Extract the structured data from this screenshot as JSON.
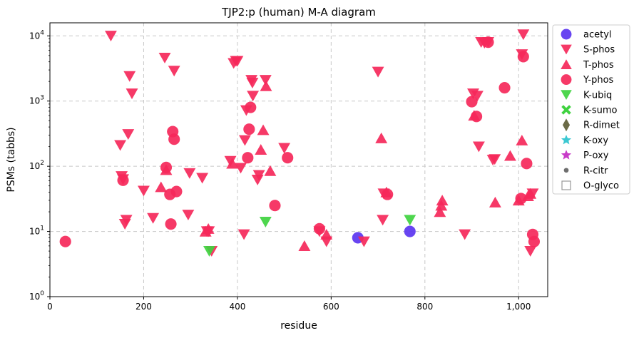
{
  "chart_data": {
    "type": "scatter",
    "title": "TJP2:p (human) M-A diagram",
    "xlabel": "residue",
    "ylabel": "PSMs (tabbs)",
    "xlim": [
      0,
      1062
    ],
    "ylim_log10": [
      0,
      4.2
    ],
    "y_scale": "log",
    "grid": true,
    "legend_placement": "outside-right",
    "x_ticks": [
      {
        "value": 0,
        "label": "0"
      },
      {
        "value": 200,
        "label": "200"
      },
      {
        "value": 400,
        "label": "400"
      },
      {
        "value": 600,
        "label": "600"
      },
      {
        "value": 800,
        "label": "800"
      },
      {
        "value": 1000,
        "label": "1,000"
      }
    ],
    "y_ticks": [
      {
        "value": 1,
        "base": "10",
        "exp": "0"
      },
      {
        "value": 10,
        "base": "10",
        "exp": "1"
      },
      {
        "value": 100,
        "base": "10",
        "exp": "2"
      },
      {
        "value": 1000,
        "base": "10",
        "exp": "3"
      },
      {
        "value": 10000,
        "base": "10",
        "exp": "4"
      }
    ],
    "series": [
      {
        "name": "acetyl",
        "marker": "circle",
        "color": "#5b35f0",
        "points": [
          [
            657,
            8
          ],
          [
            768,
            10
          ]
        ]
      },
      {
        "name": "S-phos",
        "marker": "triangle-down",
        "color": "#f5285a",
        "points": [
          [
            130,
            10000
          ],
          [
            150,
            210
          ],
          [
            153,
            70
          ],
          [
            156,
            63
          ],
          [
            160,
            13
          ],
          [
            163,
            15
          ],
          [
            167,
            310
          ],
          [
            170,
            2400
          ],
          [
            175,
            1300
          ],
          [
            200,
            42
          ],
          [
            220,
            16
          ],
          [
            245,
            4600
          ],
          [
            265,
            2900
          ],
          [
            295,
            18
          ],
          [
            298,
            78
          ],
          [
            325,
            66
          ],
          [
            335,
            10
          ],
          [
            339,
            10
          ],
          [
            345,
            5
          ],
          [
            385,
            120
          ],
          [
            392,
            3800
          ],
          [
            397,
            4100
          ],
          [
            400,
            4100
          ],
          [
            407,
            94
          ],
          [
            414,
            9
          ],
          [
            416,
            250
          ],
          [
            419,
            720
          ],
          [
            430,
            2100
          ],
          [
            432,
            1900
          ],
          [
            433,
            1200
          ],
          [
            443,
            62
          ],
          [
            446,
            73
          ],
          [
            460,
            2100
          ],
          [
            500,
            190
          ],
          [
            575,
            10
          ],
          [
            590,
            7
          ],
          [
            670,
            7
          ],
          [
            700,
            2800
          ],
          [
            710,
            15
          ],
          [
            712,
            38
          ],
          [
            885,
            9
          ],
          [
            903,
            1300
          ],
          [
            912,
            1200
          ],
          [
            915,
            200
          ],
          [
            920,
            8000
          ],
          [
            927,
            7800
          ],
          [
            935,
            8000
          ],
          [
            945,
            125
          ],
          [
            949,
            128
          ],
          [
            1007,
            5200
          ],
          [
            1010,
            10500
          ],
          [
            1025,
            5
          ],
          [
            1030,
            38
          ]
        ]
      },
      {
        "name": "T-phos",
        "marker": "triangle-up",
        "color": "#f5285a",
        "points": [
          [
            237,
            48
          ],
          [
            248,
            88
          ],
          [
            332,
            10
          ],
          [
            338,
            11
          ],
          [
            389,
            110
          ],
          [
            450,
            180
          ],
          [
            455,
            360
          ],
          [
            461,
            1700
          ],
          [
            470,
            85
          ],
          [
            543,
            6
          ],
          [
            590,
            9
          ],
          [
            707,
            270
          ],
          [
            718,
            40
          ],
          [
            832,
            20
          ],
          [
            835,
            25
          ],
          [
            837,
            30
          ],
          [
            905,
            600
          ],
          [
            950,
            28
          ],
          [
            982,
            145
          ],
          [
            1000,
            30
          ],
          [
            1007,
            250
          ],
          [
            1020,
            35
          ],
          [
            1025,
            38
          ]
        ]
      },
      {
        "name": "Y-phos",
        "marker": "circle",
        "color": "#f5285a",
        "points": [
          [
            33,
            7
          ],
          [
            156,
            61
          ],
          [
            248,
            96
          ],
          [
            256,
            37
          ],
          [
            258,
            13
          ],
          [
            262,
            340
          ],
          [
            265,
            260
          ],
          [
            270,
            41
          ],
          [
            422,
            135
          ],
          [
            425,
            370
          ],
          [
            428,
            800
          ],
          [
            480,
            25
          ],
          [
            507,
            135
          ],
          [
            575,
            11
          ],
          [
            720,
            37
          ],
          [
            900,
            980
          ],
          [
            910,
            580
          ],
          [
            935,
            8000
          ],
          [
            970,
            1600
          ],
          [
            1005,
            32
          ],
          [
            1010,
            4800
          ],
          [
            1017,
            110
          ],
          [
            1030,
            9
          ],
          [
            1033,
            7
          ]
        ]
      },
      {
        "name": "K-ubiq",
        "marker": "triangle-down",
        "color": "#3fd23f",
        "points": [
          [
            340,
            5
          ],
          [
            460,
            14
          ],
          [
            768,
            15
          ]
        ]
      },
      {
        "name": "K-sumo",
        "marker": "x",
        "color": "#3fd23f",
        "points": []
      },
      {
        "name": "R-dimet",
        "marker": "diamond",
        "color": "#6b6b47",
        "points": []
      },
      {
        "name": "K-oxy",
        "marker": "star",
        "color": "#3cc8d2",
        "points": []
      },
      {
        "name": "P-oxy",
        "marker": "star",
        "color": "#c83cc8",
        "points": []
      },
      {
        "name": "R-citr",
        "marker": "small-circle",
        "color": "#6e6e6e",
        "points": []
      },
      {
        "name": "O-glyco",
        "marker": "open-square",
        "color": "#999999",
        "points": []
      }
    ]
  }
}
